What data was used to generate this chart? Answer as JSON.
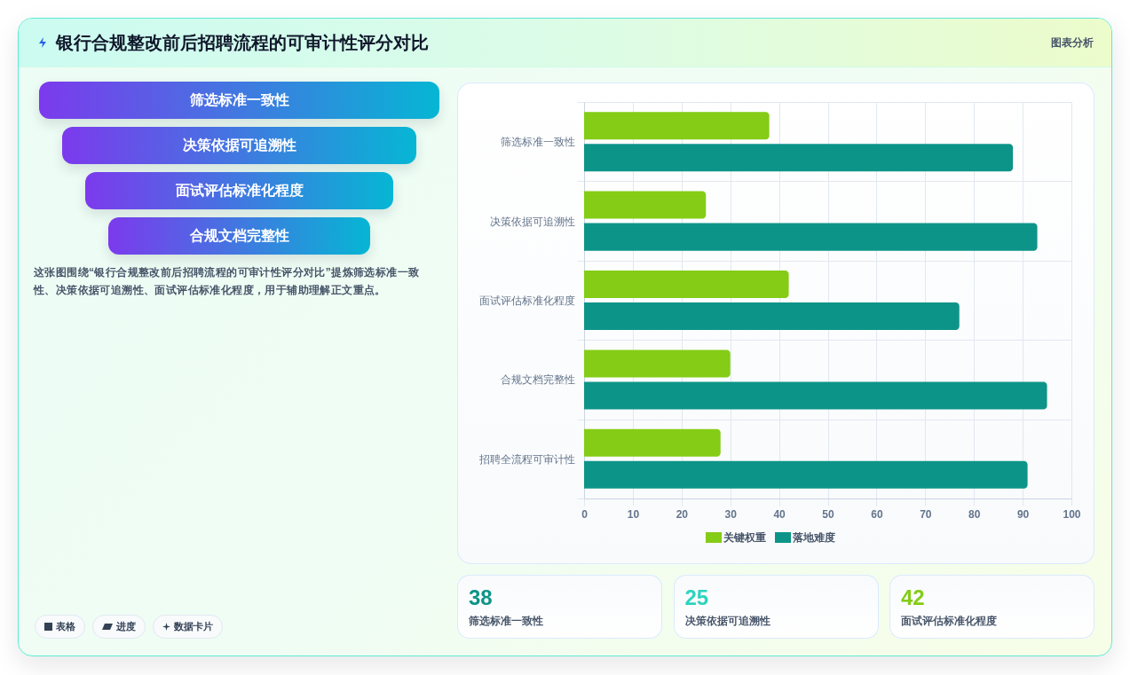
{
  "chart_data": [
    {
      "type": "other",
      "title": "银行合规整改前后招聘流程的可审计性评分对比",
      "annotations": [
        "图表分析"
      ]
    },
    {
      "type": "other",
      "categories": [
        "筛选标准一致性",
        "决策依据可追溯性",
        "面试评估标准化程度",
        "合规文档完整性"
      ],
      "annotations": [
        "这张图围绕“银行合规整改前后招聘流程的可审计性评分对比”提炼筛选标准一致性、决策依据可追溯性、面试评估标准化程度，用于辅助理解正文重点。",
        "表格",
        "进度",
        "数据卡片"
      ]
    },
    {
      "type": "bar",
      "orientation": "horizontal",
      "categories": [
        "筛选标准一致性",
        "决策依据可追溯性",
        "面试评估标准化程度",
        "合规文档完整性",
        "招聘全流程可审计性"
      ],
      "series": [
        {
          "name": "关键权重",
          "color": "#84cc16",
          "values": [
            38,
            25,
            42,
            30,
            28
          ]
        },
        {
          "name": "落地难度",
          "color": "#0d9488",
          "values": [
            88,
            93,
            77,
            95,
            91
          ]
        }
      ],
      "xlim": [
        0,
        100
      ],
      "xticks": [
        0,
        10,
        20,
        30,
        40,
        50,
        60,
        70,
        80,
        90,
        100
      ],
      "grid": true,
      "legend": "bottom"
    },
    {
      "type": "other",
      "categories": [
        "筛选标准一致性",
        "决策依据可追溯性",
        "面试评估标准化程度"
      ],
      "values": [
        38,
        25,
        42
      ],
      "data_labels": true
    }
  ]
}
